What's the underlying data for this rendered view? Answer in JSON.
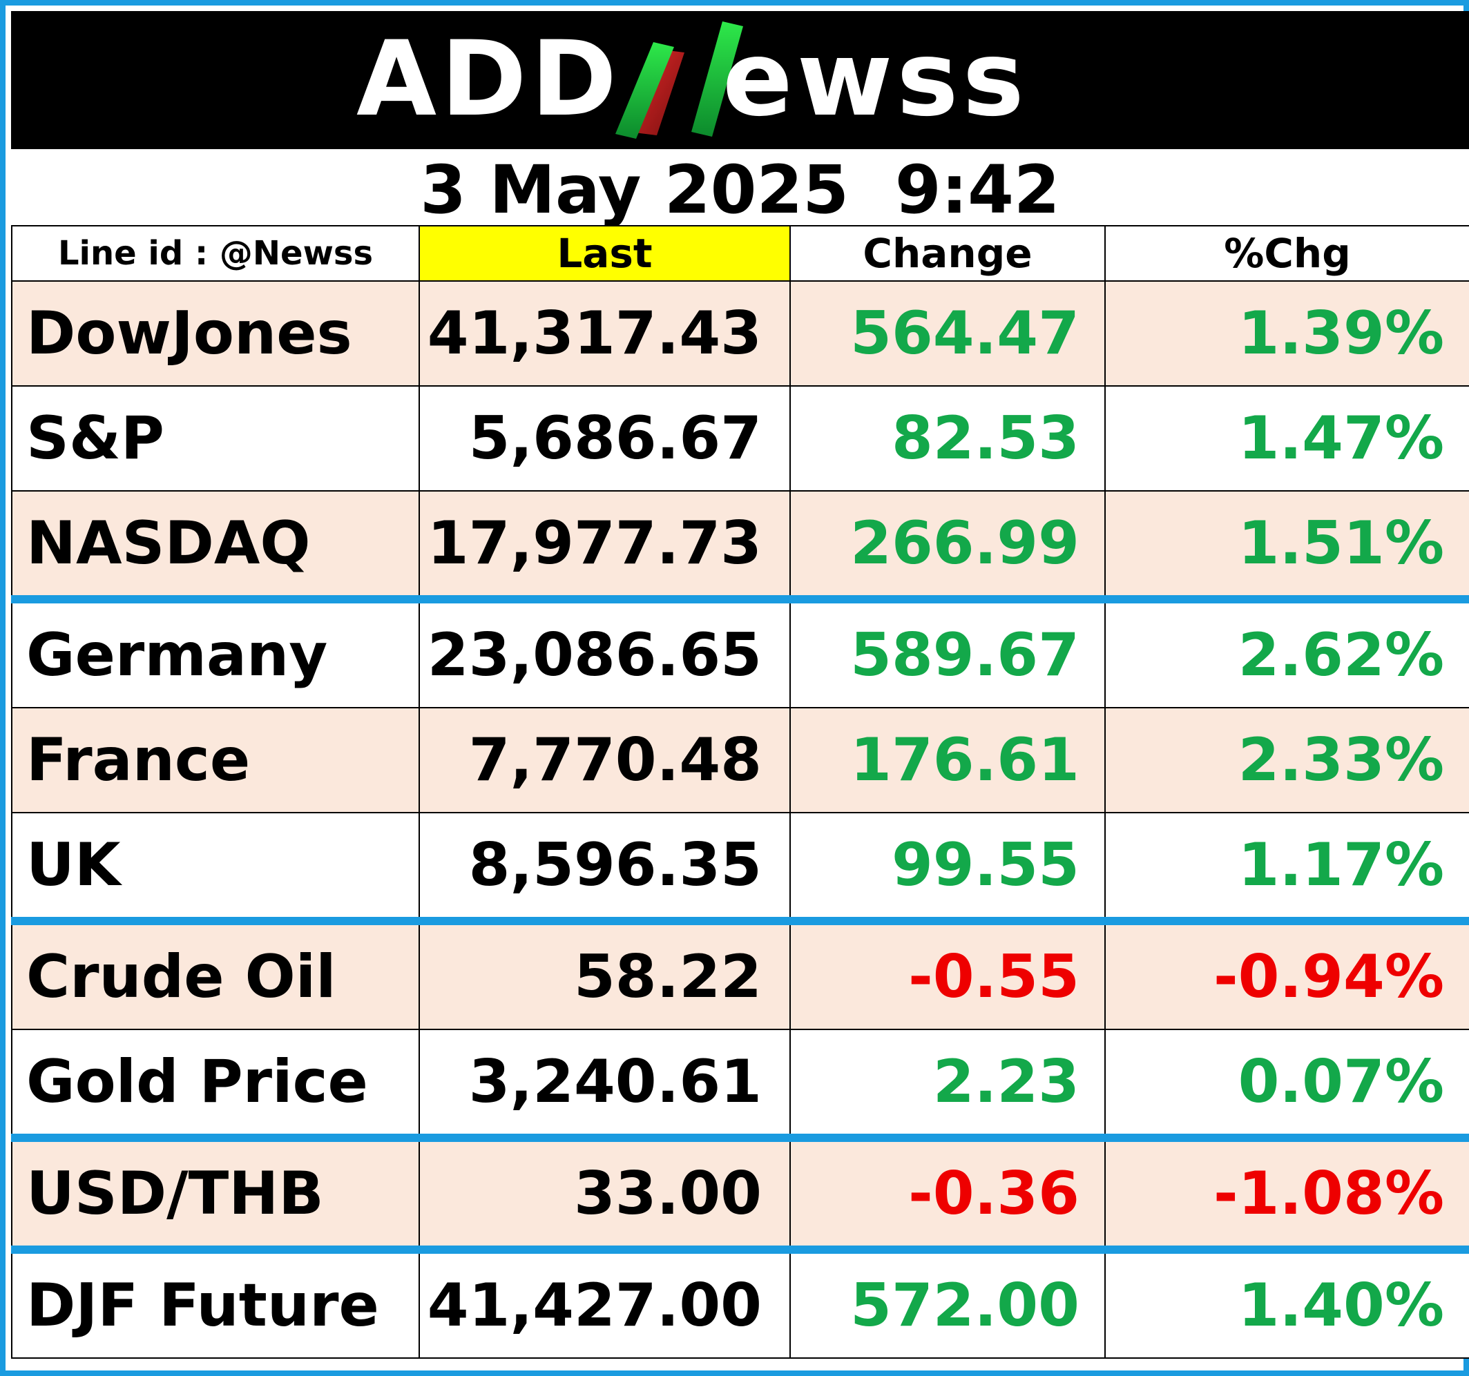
{
  "brand": {
    "logo_text": "ADDNewss",
    "colors": {
      "header_bg": "#000000",
      "frame_border": "#1a9be0",
      "positive": "#13a84a",
      "negative": "#ee0000",
      "last_header_bg": "#ffff00",
      "alt_row_bg": "#fbe8dc"
    }
  },
  "datetime": "3 May 2025  9:42",
  "table": {
    "headers": {
      "line_id": "Line id : @Newss",
      "last": "Last",
      "change": "Change",
      "pct_change": "%Chg"
    },
    "rows": [
      {
        "name": "DowJones",
        "last": "41,317.43",
        "change": "564.47",
        "pct": "1.39%",
        "direction": "up"
      },
      {
        "name": "S&P",
        "last": "5,686.67",
        "change": "82.53",
        "pct": "1.47%",
        "direction": "up"
      },
      {
        "name": "NASDAQ",
        "last": "17,977.73",
        "change": "266.99",
        "pct": "1.51%",
        "direction": "up"
      },
      {
        "name": "Germany",
        "last": "23,086.65",
        "change": "589.67",
        "pct": "2.62%",
        "direction": "up"
      },
      {
        "name": "France",
        "last": "7,770.48",
        "change": "176.61",
        "pct": "2.33%",
        "direction": "up"
      },
      {
        "name": "UK",
        "last": "8,596.35",
        "change": "99.55",
        "pct": "1.17%",
        "direction": "up"
      },
      {
        "name": "Crude Oil",
        "last": "58.22",
        "change": "-0.55",
        "pct": "-0.94%",
        "direction": "down"
      },
      {
        "name": "Gold Price",
        "last": "3,240.61",
        "change": "2.23",
        "pct": "0.07%",
        "direction": "up"
      },
      {
        "name": "USD/THB",
        "last": "33.00",
        "change": "-0.36",
        "pct": "-1.08%",
        "direction": "down"
      },
      {
        "name": "DJF Future",
        "last": "41,427.00",
        "change": "572.00",
        "pct": "1.40%",
        "direction": "up"
      }
    ]
  }
}
